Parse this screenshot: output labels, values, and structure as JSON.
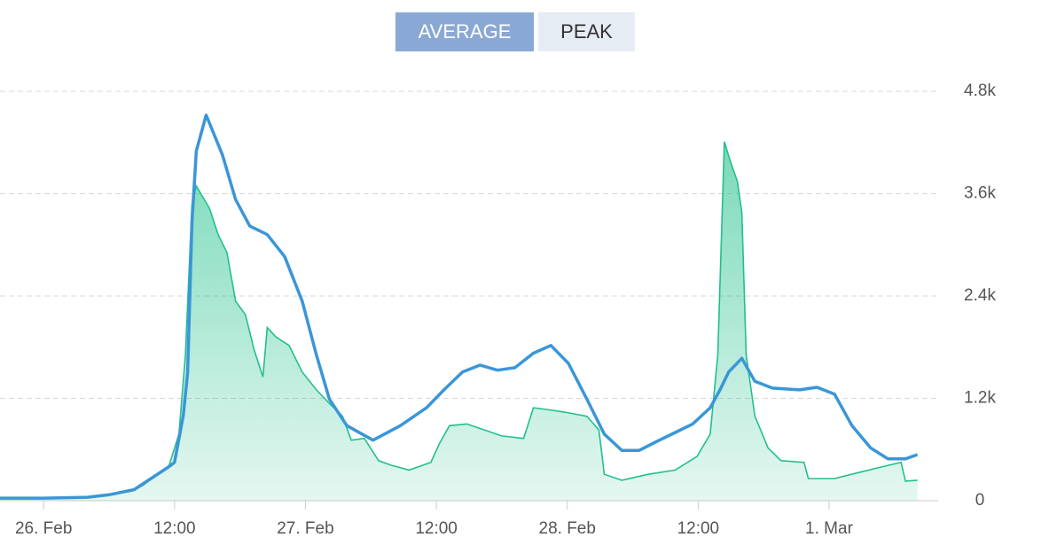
{
  "buttons": [
    "AVERAGE",
    "PEAK"
  ],
  "chart_data": {
    "type": "line",
    "xlim": [
      -4,
      82
    ],
    "ylim": [
      0,
      4800
    ],
    "xticks": [
      {
        "value": 0,
        "label": "26. Feb"
      },
      {
        "value": 12,
        "label": "12:00"
      },
      {
        "value": 24,
        "label": "27. Feb"
      },
      {
        "value": 36,
        "label": "12:00"
      },
      {
        "value": 48,
        "label": "28. Feb"
      },
      {
        "value": 60,
        "label": "12:00"
      },
      {
        "value": 72,
        "label": "1. Mar"
      }
    ],
    "yticks": [
      0,
      {
        "value": 1200,
        "label": "1.2k"
      },
      {
        "value": 2400,
        "label": "2.4k"
      },
      {
        "value": 3600,
        "label": "3.6k"
      },
      {
        "value": 4800,
        "label": "4.8k"
      }
    ],
    "grid": true,
    "series": [
      {
        "color": "#21c08b",
        "fill": "area",
        "x": [
          -4,
          0,
          4,
          6,
          8,
          9.1,
          11.5,
          12.4,
          13,
          13.6,
          14,
          15.2,
          16,
          16.8,
          17.6,
          18.5,
          19.3,
          20.1,
          20.5,
          21.3,
          22.5,
          23.7,
          25,
          26.2,
          27.4,
          28.2,
          29.4,
          30.7,
          31.9,
          33.5,
          35.5,
          36.3,
          37.2,
          38.8,
          40.4,
          42,
          44,
          44.9,
          46.1,
          47.7,
          49.8,
          50.9,
          51.4,
          53,
          55.4,
          57.9,
          59.9,
          61.1,
          61.8,
          62.4,
          62.9,
          63.6,
          64,
          64.4,
          65.2,
          66.4,
          67.6,
          69.7,
          70.1,
          72.5,
          75,
          77.4,
          78.6,
          79,
          80.1
        ],
        "values": [
          30,
          30,
          40,
          70,
          110,
          180,
          415,
          780,
          1710,
          3480,
          3690,
          3430,
          3120,
          2910,
          2340,
          2180,
          1770,
          1450,
          2030,
          1920,
          1820,
          1510,
          1300,
          1140,
          990,
          710,
          730,
          470,
          415,
          360,
          450,
          675,
          880,
          900,
          830,
          760,
          730,
          1090,
          1070,
          1040,
          990,
          830,
          310,
          240,
          310,
          360,
          520,
          780,
          1710,
          4210,
          4000,
          3740,
          3380,
          1710,
          990,
          620,
          470,
          450,
          260,
          260,
          340,
          415,
          450,
          230,
          240
        ]
      },
      {
        "color": "#3a96d8",
        "x": [
          -4,
          0,
          4,
          6,
          8.3,
          11.5,
          12,
          12.8,
          13.2,
          13.6,
          14,
          14.9,
          16.4,
          17.6,
          18.9,
          20.5,
          22.1,
          23.7,
          25,
          26.2,
          27.8,
          30.2,
          32.7,
          35.1,
          36.7,
          38.4,
          40,
          41.6,
          43.2,
          44.9,
          46.5,
          48.1,
          49.8,
          51.4,
          53,
          54.6,
          56.3,
          57.9,
          59.5,
          61.1,
          62,
          62.8,
          64,
          65.2,
          66.8,
          69.3,
          70.9,
          72.5,
          74.1,
          75.8,
          77.4,
          79,
          80.1
        ],
        "values": [
          30,
          30,
          40,
          70,
          130,
          400,
          450,
          1000,
          1500,
          3270,
          4100,
          4520,
          4050,
          3530,
          3220,
          3120,
          2860,
          2340,
          1710,
          1190,
          880,
          710,
          880,
          1090,
          1300,
          1510,
          1590,
          1530,
          1560,
          1730,
          1820,
          1610,
          1190,
          780,
          590,
          590,
          700,
          800,
          900,
          1090,
          1300,
          1510,
          1670,
          1400,
          1320,
          1300,
          1330,
          1250,
          880,
          620,
          490,
          490,
          540
        ]
      }
    ]
  }
}
